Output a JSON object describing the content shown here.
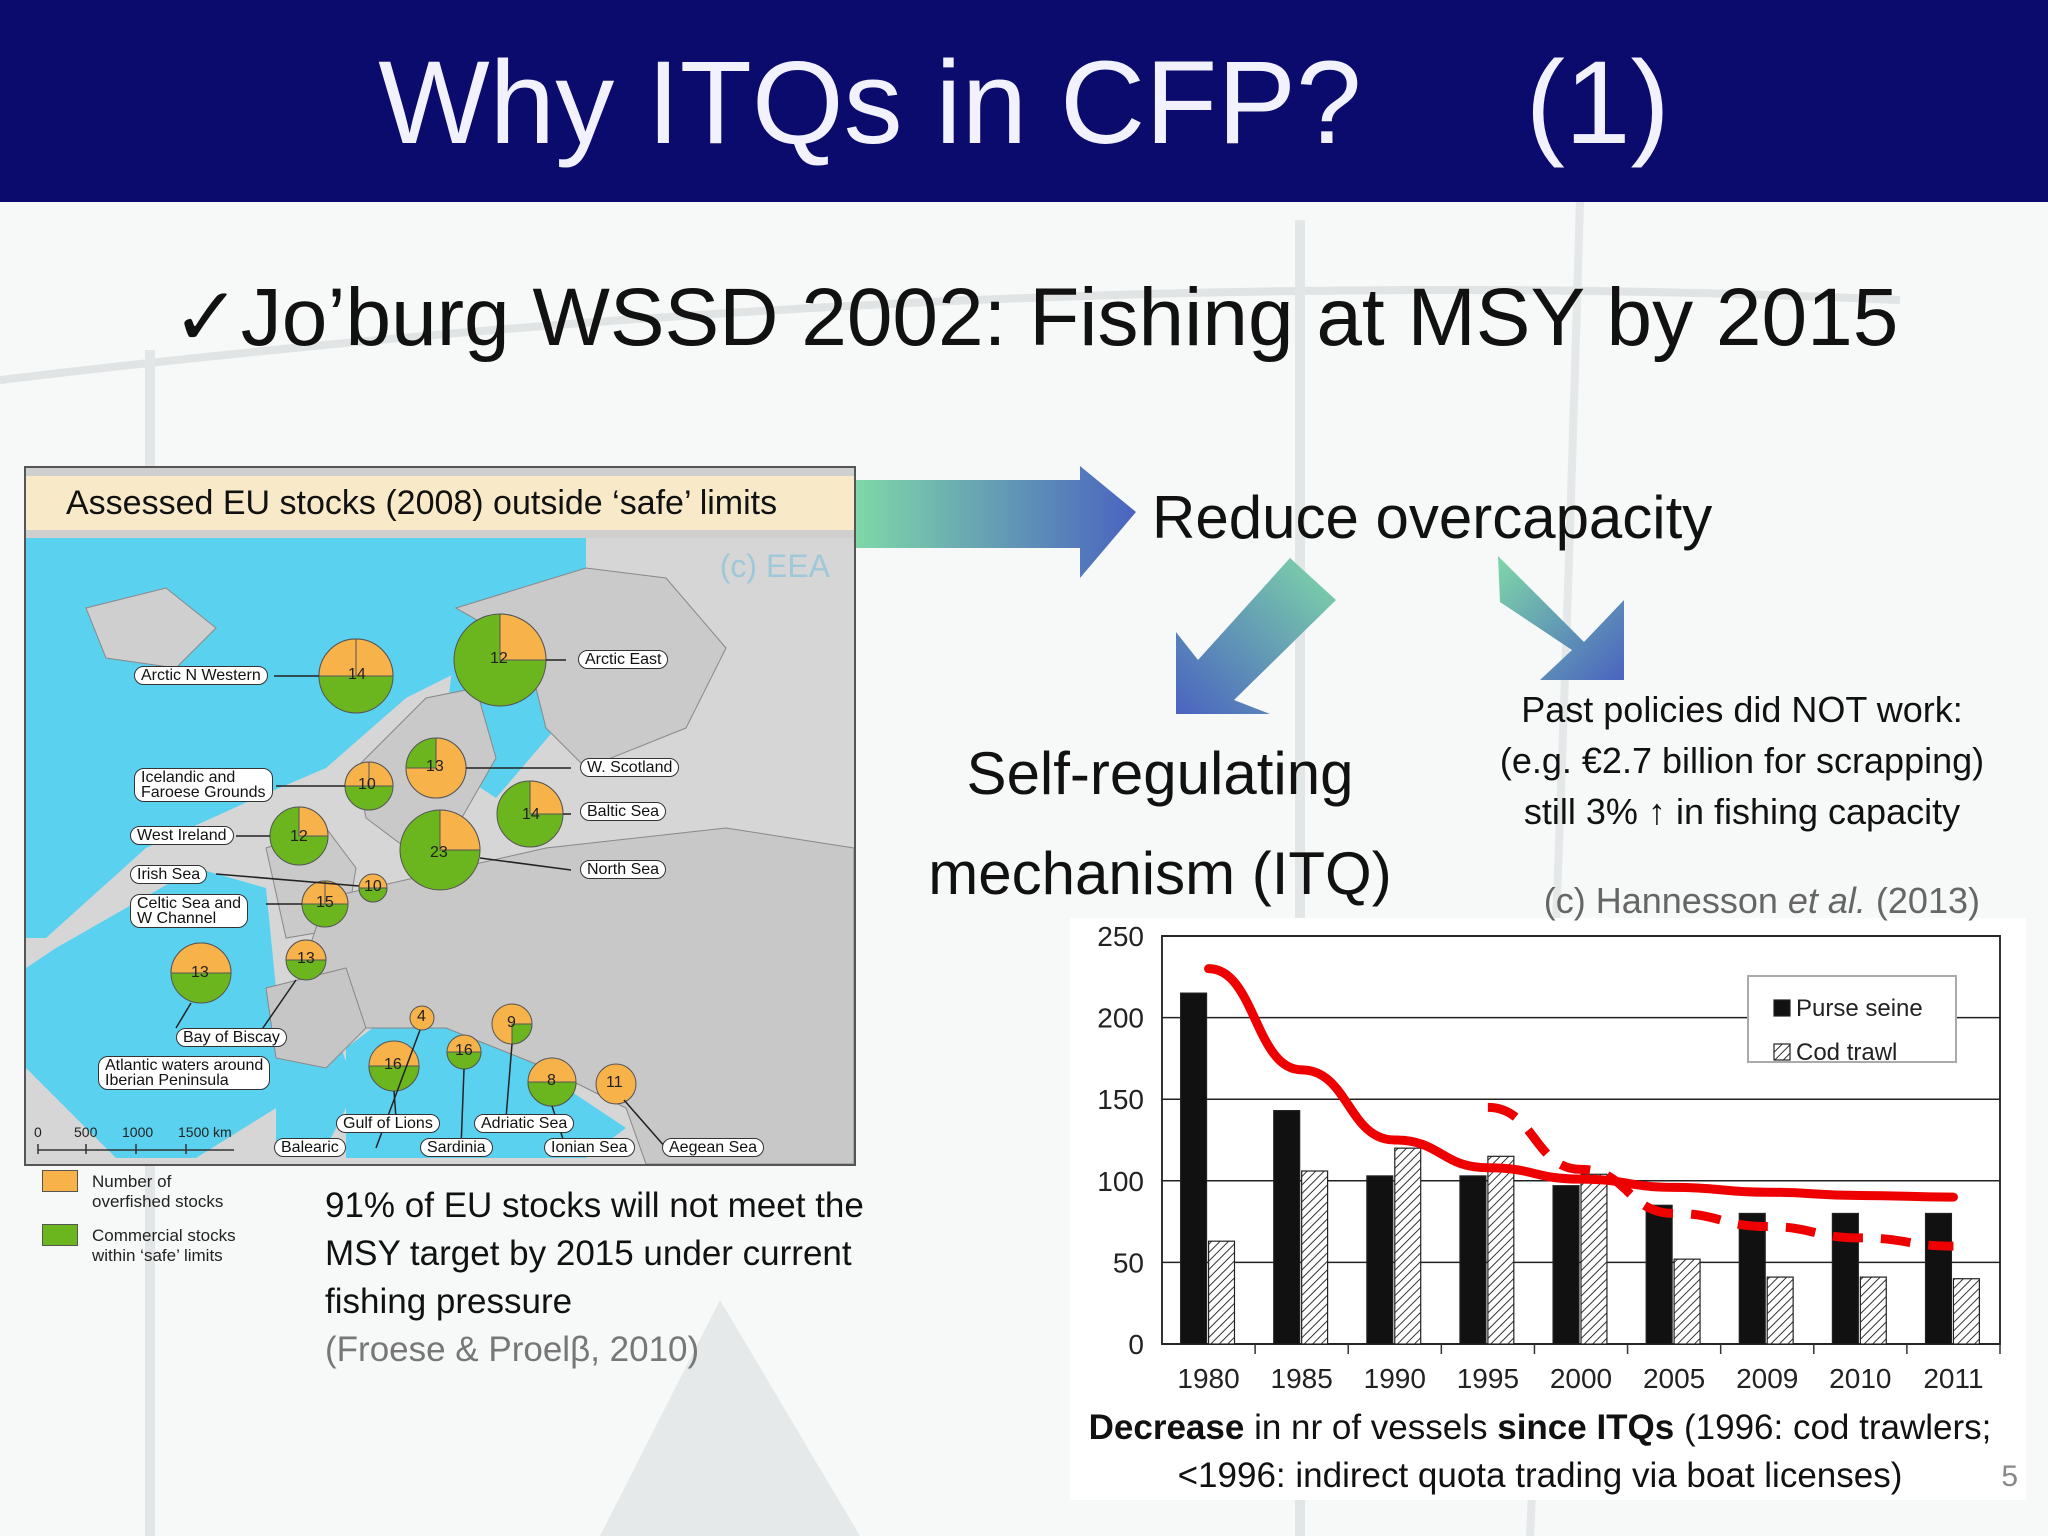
{
  "slide": {
    "title": "Why ITQs in CFP?     (1)",
    "bullet_mark": "✓",
    "bullet_text": "Jo’burg WSSD 2002: Fishing at MSY by 2015",
    "page_number": "5"
  },
  "map": {
    "title": "Assessed EU stocks (2008) outside ‘safe’ limits",
    "credit": "(c) EEA",
    "region_labels": {
      "arctic_nw": "Arctic N Western",
      "arctic_east": "Arctic East",
      "iceland_1": "Icelandic and",
      "iceland_2": "Faroese Grounds",
      "w_scotland": "W. Scotland",
      "baltic": "Baltic Sea",
      "west_ireland": "West Ireland",
      "north_sea": "North Sea",
      "irish_sea": "Irish Sea",
      "celtic_1": "Celtic Sea and",
      "celtic_2": "W Channel",
      "biscay": "Bay of Biscay",
      "iberia_1": "Atlantic waters around",
      "iberia_2": "Iberian Peninsula",
      "gulf_lions": "Gulf of Lions",
      "adriatic": "Adriatic Sea",
      "balearic": "Balearic",
      "sardinia": "Sardinia",
      "ionian": "Ionian Sea",
      "aegean": "Aegean Sea"
    },
    "pie_numbers": {
      "arctic_nw": "14",
      "arctic_east": "12",
      "iceland": "10",
      "w_scotland": "13",
      "baltic": "14",
      "west_ireland": "12",
      "north_sea": "23",
      "irish_sea": "10",
      "celtic": "15",
      "iberia": "13",
      "biscay": "13",
      "gulf_lions": "16",
      "balearic": "4",
      "sardinia": "16",
      "adriatic": "9",
      "ionian": "8",
      "aegean": "11"
    },
    "scale": {
      "t0": "0",
      "t1": "500",
      "t2": "1000",
      "t3": "1500 km"
    },
    "legend": {
      "overfished_1": "Number of",
      "overfished_2": "overfished stocks",
      "safe_1": "Commercial stocks",
      "safe_2": "within ‘safe’ limits",
      "overfished_color": "#f7b24a",
      "safe_color": "#6bb51f"
    }
  },
  "stocks_text": "91% of EU stocks will not meet the MSY target by 2015 under current fishing pressure",
  "stocks_citation": "(Froese & Proelβ, 2010)",
  "reduce_text": "Reduce overcapacity",
  "self_regulating": {
    "line1": "Self-regulating",
    "line2": "mechanism (ITQ)"
  },
  "past_policies": {
    "line1": "Past policies did NOT work:",
    "line2": "(e.g. €2.7 billion for scrapping)",
    "line3": "still 3% ↑ in fishing capacity"
  },
  "chart_citation_prefix": "(c) Hannesson ",
  "chart_citation_italic": "et al.",
  "chart_citation_suffix": " (2013)",
  "chart_data": {
    "type": "bar",
    "categories": [
      "1980",
      "1985",
      "1990",
      "1995",
      "2000",
      "2005",
      "2009",
      "2010",
      "2011"
    ],
    "series": [
      {
        "name": "Purse seine",
        "values": [
          215,
          143,
          103,
          103,
          97,
          85,
          80,
          80,
          80
        ]
      },
      {
        "name": "Cod trawl",
        "values": [
          63,
          106,
          120,
          115,
          104,
          52,
          41,
          41,
          40
        ]
      }
    ],
    "ylim": [
      0,
      250
    ],
    "yticks": [
      "0",
      "50",
      "100",
      "150",
      "200",
      "250"
    ],
    "grid": true,
    "legend_position": "top-right",
    "trend_solid": [
      [
        0,
        230
      ],
      [
        1,
        168
      ],
      [
        2,
        125
      ],
      [
        3,
        108
      ],
      [
        4,
        101
      ],
      [
        5,
        96
      ],
      [
        6,
        93
      ],
      [
        7,
        91
      ],
      [
        8,
        90
      ]
    ],
    "trend_dashed": [
      [
        3,
        145
      ],
      [
        4,
        107
      ],
      [
        5,
        80
      ],
      [
        6,
        72
      ],
      [
        7,
        65
      ],
      [
        8,
        60
      ]
    ],
    "trend_color": "#ee0000"
  },
  "caption": {
    "b1": "Decrease",
    "t1": " in nr of vessels ",
    "b2": "since ITQs",
    "t2": " (1996: cod trawlers;",
    "line2": "<1996: indirect quota trading via boat licenses)"
  }
}
